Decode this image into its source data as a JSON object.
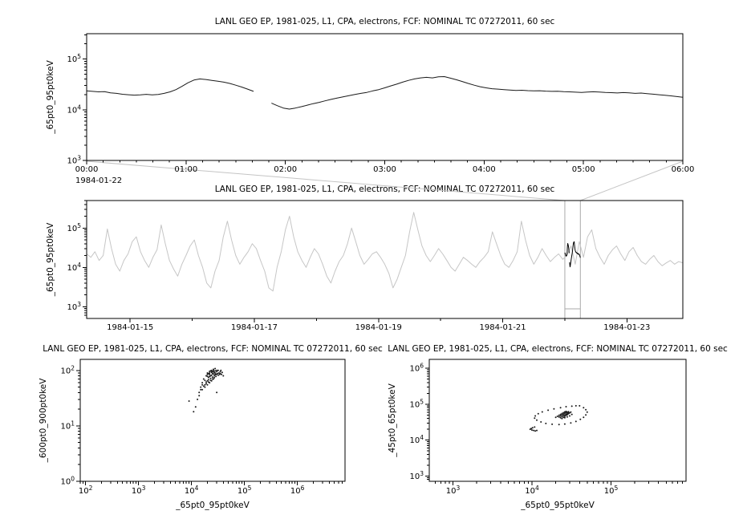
{
  "colors": {
    "background": "#ffffff",
    "text": "#000000",
    "axis": "#000000",
    "series": "#1a1a1a",
    "context_series": "#c6c6c6",
    "overlay_series": "#000000",
    "selection_box": "#aaaaaa",
    "connector": "#c4c4c4"
  },
  "chart_data": [
    {
      "type": "line",
      "title": "LANL GEO EP, 1981-025, L1, CPA, electrons, FCF: NOMINAL TC 07272011, 60 sec",
      "ylabel": "_65pt0_95pt0keV",
      "ylog": true,
      "ylim": [
        3,
        5.5
      ],
      "y_tick_exponents": [
        3,
        4,
        5
      ],
      "xlim": [
        0,
        6
      ],
      "x_tick_labels": [
        "00:00",
        "01:00",
        "02:00",
        "03:00",
        "04:00",
        "05:00",
        "06:00"
      ],
      "date_label": "1984-01-22",
      "x0": 0,
      "dx": 0.06,
      "values": [
        23500,
        23000,
        22500,
        22800,
        21500,
        21000,
        20200,
        19800,
        19400,
        19700,
        20100,
        19600,
        20000,
        21000,
        22500,
        25000,
        29000,
        34000,
        38500,
        40500,
        39500,
        38000,
        36500,
        35000,
        33000,
        30500,
        28000,
        25500,
        23000,
        null,
        null,
        13500,
        12000,
        10800,
        10300,
        10800,
        11500,
        12300,
        13200,
        14000,
        15000,
        16000,
        17000,
        18000,
        19000,
        20000,
        21000,
        22000,
        23500,
        25000,
        27000,
        29500,
        32000,
        35000,
        38000,
        40500,
        42500,
        43500,
        42500,
        44500,
        45000,
        42000,
        39000,
        36000,
        33000,
        30500,
        28500,
        27000,
        26000,
        25500,
        25000,
        24500,
        24000,
        24200,
        23800,
        23500,
        23700,
        23300,
        23000,
        23200,
        22800,
        22500,
        22200,
        22000,
        22300,
        22600,
        22400,
        22000,
        21700,
        21400,
        21800,
        21500,
        21000,
        21300,
        20800,
        20300,
        19800,
        19300,
        18800,
        18200,
        17600
      ]
    },
    {
      "type": "line",
      "title": "LANL GEO EP, 1981-025, L1, CPA, electrons, FCF: NOMINAL TC 07272011, 60 sec",
      "ylabel": "_65pt0_95pt0keV",
      "ylog": true,
      "ylim": [
        2.7,
        5.7
      ],
      "y_tick_exponents": [
        3,
        4,
        5
      ],
      "xlim": [
        14.3,
        23.9
      ],
      "x_tick_days": [
        15,
        17,
        19,
        21,
        23
      ],
      "x_tick_labels": [
        "1984-01-15",
        "1984-01-17",
        "1984-01-19",
        "1984-01-21",
        "1984-01-23"
      ],
      "highlight_box_days": [
        22.0,
        22.25
      ],
      "x0": 14.3,
      "dx": 0.066667,
      "values": [
        22000,
        18000,
        25000,
        15000,
        20000,
        95000,
        30000,
        12000,
        8000,
        15000,
        22000,
        45000,
        60000,
        25000,
        15000,
        10000,
        18000,
        28000,
        120000,
        40000,
        15000,
        9000,
        6000,
        12000,
        20000,
        35000,
        50000,
        20000,
        10000,
        4000,
        3000,
        8000,
        15000,
        60000,
        150000,
        50000,
        20000,
        12000,
        18000,
        25000,
        40000,
        30000,
        15000,
        8000,
        3000,
        2500,
        10000,
        25000,
        90000,
        200000,
        60000,
        25000,
        15000,
        10000,
        18000,
        30000,
        22000,
        12000,
        6000,
        4000,
        8000,
        14000,
        20000,
        40000,
        100000,
        45000,
        20000,
        12000,
        16000,
        22000,
        25000,
        18000,
        12000,
        7000,
        3000,
        5000,
        10000,
        20000,
        80000,
        250000,
        90000,
        35000,
        20000,
        14000,
        20000,
        30000,
        22000,
        15000,
        10000,
        8000,
        12000,
        18000,
        15000,
        12000,
        10000,
        14000,
        18000,
        25000,
        80000,
        40000,
        20000,
        12000,
        10000,
        15000,
        25000,
        150000,
        50000,
        20000,
        12000,
        18000,
        30000,
        20000,
        14000,
        18000,
        22000,
        16000,
        20000,
        35000,
        12000,
        45000,
        18000,
        60000,
        90000,
        30000,
        18000,
        12000,
        20000,
        28000,
        35000,
        22000,
        15000,
        25000,
        32000,
        20000,
        14000,
        12000,
        16000,
        20000,
        14000,
        11000,
        13000,
        15000,
        12000,
        14000,
        13000
      ]
    },
    {
      "type": "scatter",
      "title": "LANL GEO EP, 1981-025, L1, CPA, electrons, FCF: NOMINAL TC 07272011, 60 sec",
      "xlabel": "_65pt0_95pt0keV",
      "ylabel": "_600pt0_900pt0keV",
      "xlog": true,
      "ylog": true,
      "xlim": [
        1.9,
        6.9
      ],
      "ylim": [
        0,
        2.2
      ],
      "x_tick_exponents": [
        2,
        3,
        4,
        5,
        6
      ],
      "y_tick_exponents": [
        0,
        1,
        2
      ],
      "points": [
        [
          20000,
          85
        ],
        [
          22000,
          90
        ],
        [
          24000,
          95
        ],
        [
          26000,
          100
        ],
        [
          23000,
          80
        ],
        [
          21000,
          75
        ],
        [
          25000,
          88
        ],
        [
          27000,
          92
        ],
        [
          28000,
          85
        ],
        [
          30000,
          95
        ],
        [
          32000,
          100
        ],
        [
          29000,
          78
        ],
        [
          31000,
          88
        ],
        [
          26000,
          70
        ],
        [
          24000,
          65
        ],
        [
          22000,
          60
        ],
        [
          20000,
          55
        ],
        [
          18000,
          50
        ],
        [
          19000,
          62
        ],
        [
          21000,
          68
        ],
        [
          23000,
          72
        ],
        [
          25000,
          76
        ],
        [
          27000,
          80
        ],
        [
          29000,
          84
        ],
        [
          33000,
          90
        ],
        [
          35000,
          95
        ],
        [
          34000,
          85
        ],
        [
          36000,
          100
        ],
        [
          38000,
          92
        ],
        [
          25000,
          95
        ],
        [
          23000,
          98
        ],
        [
          21000,
          88
        ],
        [
          19000,
          80
        ],
        [
          17000,
          70
        ],
        [
          16000,
          60
        ],
        [
          15000,
          50
        ],
        [
          14000,
          40
        ],
        [
          16000,
          45
        ],
        [
          18000,
          55
        ],
        [
          20000,
          65
        ],
        [
          22000,
          78
        ],
        [
          24000,
          82
        ],
        [
          26000,
          86
        ],
        [
          28000,
          90
        ],
        [
          30000,
          86
        ],
        [
          32000,
          82
        ],
        [
          27000,
          74
        ],
        [
          25000,
          70
        ],
        [
          23000,
          66
        ],
        [
          21000,
          62
        ],
        [
          19000,
          58
        ],
        [
          17000,
          52
        ],
        [
          26000,
          95
        ],
        [
          28000,
          98
        ],
        [
          30000,
          100
        ],
        [
          24000,
          92
        ],
        [
          22000,
          85
        ],
        [
          20000,
          78
        ],
        [
          18000,
          66
        ],
        [
          16000,
          55
        ],
        [
          15000,
          45
        ],
        [
          14000,
          35
        ],
        [
          13000,
          30
        ],
        [
          24000,
          100
        ],
        [
          26000,
          105
        ],
        [
          28000,
          108
        ],
        [
          22000,
          96
        ],
        [
          20000,
          90
        ],
        [
          35000,
          88
        ],
        [
          37000,
          85
        ],
        [
          40000,
          80
        ],
        [
          12000,
          22
        ],
        [
          11000,
          18
        ],
        [
          30000,
          40
        ],
        [
          9000,
          28
        ]
      ]
    },
    {
      "type": "scatter",
      "title": "LANL GEO EP, 1981-025, L1, CPA, electrons, FCF: NOMINAL TC 07272011, 60 sec",
      "xlabel": "_65pt0_95pt0keV",
      "ylabel": "_45pt0_65pt0keV",
      "xlog": true,
      "ylog": true,
      "xlim": [
        2.7,
        5.95
      ],
      "ylim": [
        2.85,
        6.25
      ],
      "x_tick_exponents": [
        3,
        4,
        5
      ],
      "y_tick_exponents": [
        3,
        4,
        5,
        6
      ],
      "points": [
        [
          40000,
          90000
        ],
        [
          45000,
          80000
        ],
        [
          48000,
          70000
        ],
        [
          50000,
          60000
        ],
        [
          48000,
          50000
        ],
        [
          45000,
          43000
        ],
        [
          41000,
          38000
        ],
        [
          36000,
          33000
        ],
        [
          31000,
          30000
        ],
        [
          26000,
          28000
        ],
        [
          22000,
          27000
        ],
        [
          18000,
          27500
        ],
        [
          15000,
          29000
        ],
        [
          13000,
          32000
        ],
        [
          11500,
          36000
        ],
        [
          10800,
          41000
        ],
        [
          11000,
          47000
        ],
        [
          12000,
          54000
        ],
        [
          13500,
          61000
        ],
        [
          16000,
          68000
        ],
        [
          19000,
          74000
        ],
        [
          23000,
          80000
        ],
        [
          27000,
          85000
        ],
        [
          32000,
          88000
        ],
        [
          36000,
          90000
        ],
        [
          24000,
          45000
        ],
        [
          25000,
          48000
        ],
        [
          26000,
          50000
        ],
        [
          27000,
          52000
        ],
        [
          28000,
          55000
        ],
        [
          24000,
          50000
        ],
        [
          25000,
          53000
        ],
        [
          26000,
          56000
        ],
        [
          27000,
          58000
        ],
        [
          23000,
          47000
        ],
        [
          22000,
          44000
        ],
        [
          23000,
          42000
        ],
        [
          24000,
          40000
        ],
        [
          25000,
          43000
        ],
        [
          26000,
          46000
        ],
        [
          27000,
          49000
        ],
        [
          28000,
          51000
        ],
        [
          29000,
          54000
        ],
        [
          30000,
          57000
        ],
        [
          31000,
          60000
        ],
        [
          25000,
          58000
        ],
        [
          26000,
          61000
        ],
        [
          27000,
          63000
        ],
        [
          28000,
          60000
        ],
        [
          29000,
          62000
        ],
        [
          24000,
          55000
        ],
        [
          23000,
          52000
        ],
        [
          22000,
          49000
        ],
        [
          21000,
          46000
        ],
        [
          20000,
          43000
        ],
        [
          26000,
          42000
        ],
        [
          28000,
          44000
        ],
        [
          30000,
          47000
        ],
        [
          32000,
          52000
        ],
        [
          29000,
          58000
        ],
        [
          9500,
          20000
        ],
        [
          10000,
          19000
        ],
        [
          10500,
          18500
        ],
        [
          11000,
          18000
        ],
        [
          11500,
          18500
        ],
        [
          9800,
          21000
        ],
        [
          10200,
          22000
        ],
        [
          10800,
          23000
        ]
      ]
    }
  ]
}
